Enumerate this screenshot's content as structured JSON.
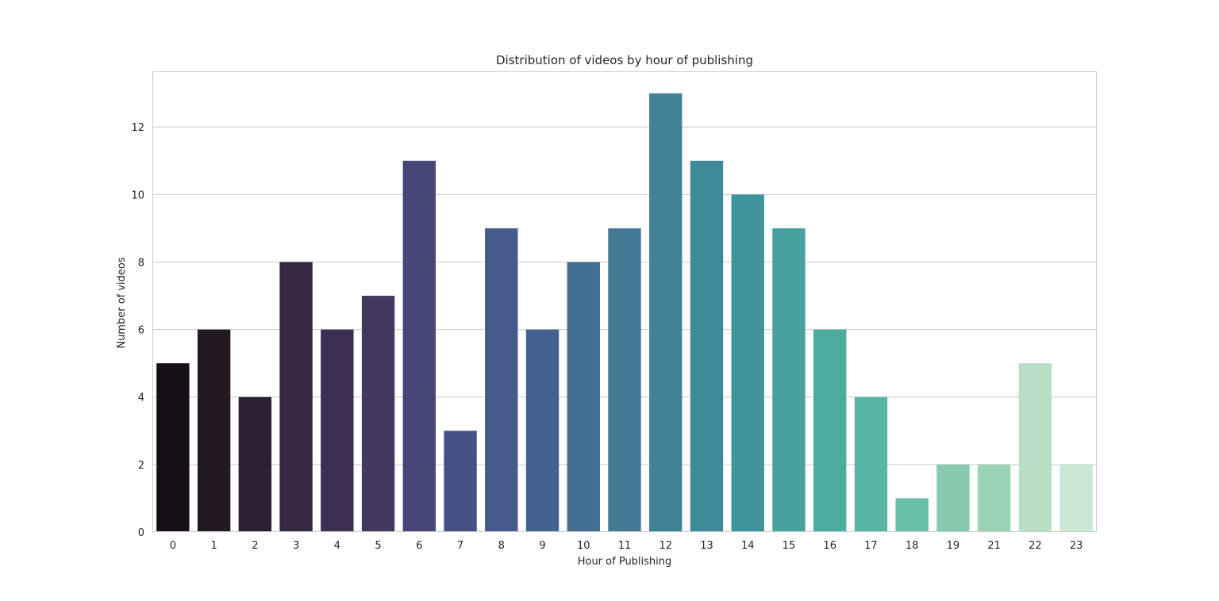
{
  "chart_data": {
    "type": "bar",
    "title": "Distribution of videos by hour of publishing",
    "xlabel": "Hour of Publishing",
    "ylabel": "Number of videos",
    "categories": [
      "0",
      "1",
      "2",
      "3",
      "4",
      "5",
      "6",
      "7",
      "8",
      "9",
      "10",
      "11",
      "12",
      "13",
      "14",
      "15",
      "16",
      "17",
      "18",
      "19",
      "21",
      "22",
      "23"
    ],
    "values": [
      5,
      6,
      4,
      8,
      6,
      7,
      11,
      3,
      9,
      6,
      8,
      9,
      13,
      11,
      10,
      9,
      6,
      4,
      1,
      2,
      2,
      5,
      2
    ],
    "colors": [
      "#170f17",
      "#221923",
      "#2b1f33",
      "#352942",
      "#3c2f51",
      "#43395f",
      "#464677",
      "#455185",
      "#465a8c",
      "#43628f",
      "#426e92",
      "#427993",
      "#418296",
      "#3f8a99",
      "#40949c",
      "#48a09f",
      "#4dab9f",
      "#58b5a4",
      "#68c1a6",
      "#87caad",
      "#9bd4b5",
      "#b9dfc6",
      "#cae8d3"
    ],
    "yticks": [
      "0",
      "2",
      "4",
      "6",
      "8",
      "10",
      "12"
    ],
    "ylim": [
      0,
      13.65
    ],
    "grid": true,
    "grid_axis": "y",
    "legend": false
  }
}
